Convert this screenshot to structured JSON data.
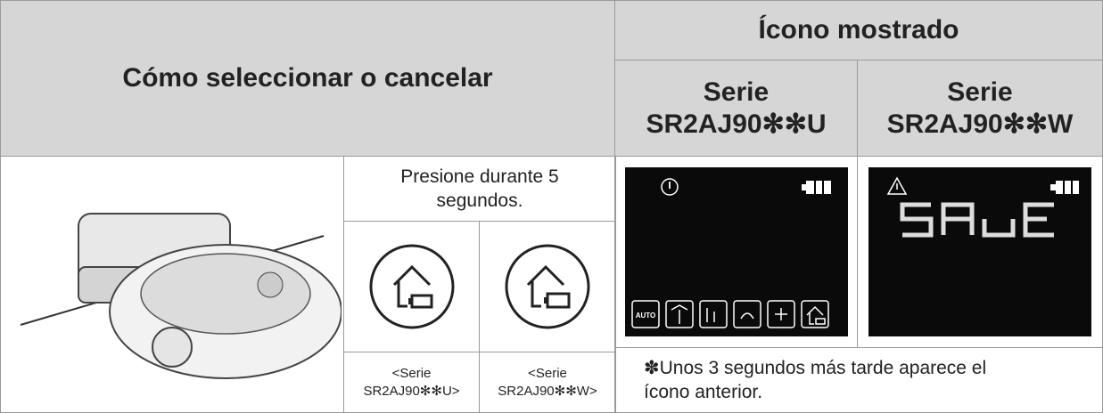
{
  "header": {
    "title": "Cómo seleccionar o cancelar",
    "icon_shown": "Ícono mostrado",
    "series_u": "Serie\nSR2AJ90✻✻U",
    "series_w": "Serie\nSR2AJ90✻✻W"
  },
  "body": {
    "instruction": "Presione durante 5\nsegundos.",
    "button_label_u": "<Serie\nSR2AJ90✻✻U>",
    "button_label_w": "<Serie\nSR2AJ90✻✻W>",
    "auto_icon": "AUTO",
    "note": "✽Unos 3 segundos más tarde aparece el\nícono anterior."
  }
}
